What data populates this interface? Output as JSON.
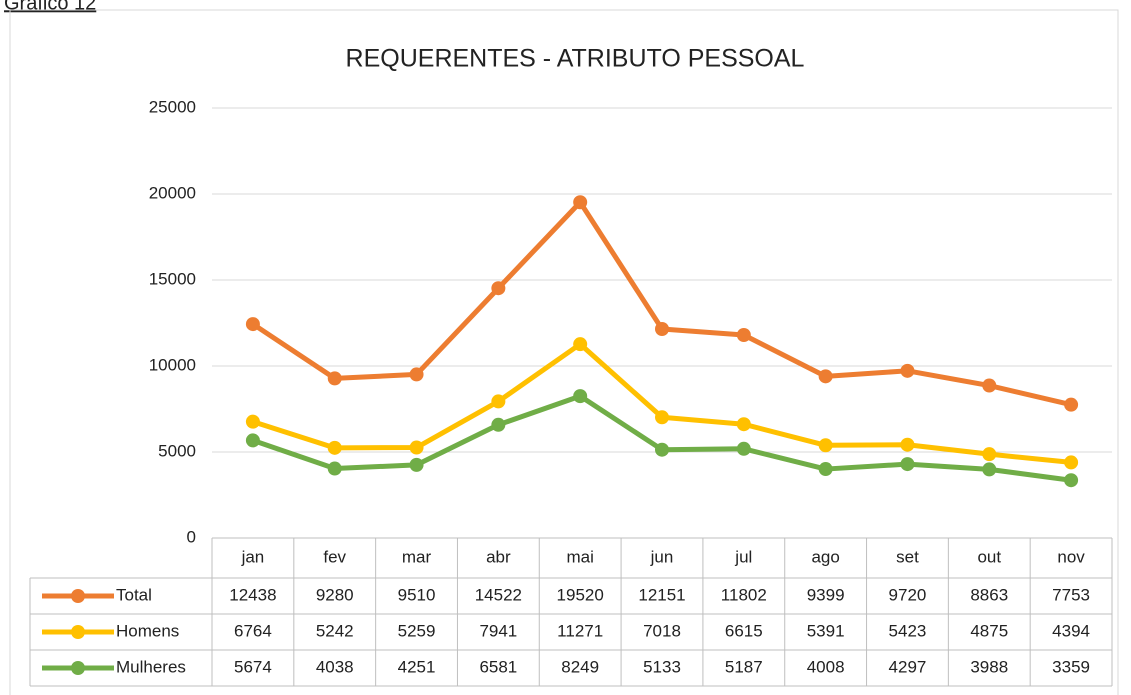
{
  "caption": "Gráfico 12",
  "chart_data": {
    "type": "line",
    "title": "REQUERENTES - ATRIBUTO PESSOAL",
    "categories": [
      "jan",
      "fev",
      "mar",
      "abr",
      "mai",
      "jun",
      "jul",
      "ago",
      "set",
      "out",
      "nov"
    ],
    "series": [
      {
        "name": "Total",
        "color": "#ED7D31",
        "values": [
          12438,
          9280,
          9510,
          14522,
          19520,
          12151,
          11802,
          9399,
          9720,
          8863,
          7753
        ]
      },
      {
        "name": "Homens",
        "color": "#FFC000",
        "values": [
          6764,
          5242,
          5259,
          7941,
          11271,
          7018,
          6615,
          5391,
          5423,
          4875,
          4394
        ]
      },
      {
        "name": "Mulheres",
        "color": "#70AD47",
        "values": [
          5674,
          4038,
          4251,
          6581,
          8249,
          5133,
          5187,
          4008,
          4297,
          3988,
          3359
        ]
      }
    ],
    "ylim": [
      0,
      25000
    ],
    "yticks": [
      0,
      5000,
      10000,
      15000,
      20000,
      25000
    ],
    "grid": true,
    "data_table": true
  }
}
